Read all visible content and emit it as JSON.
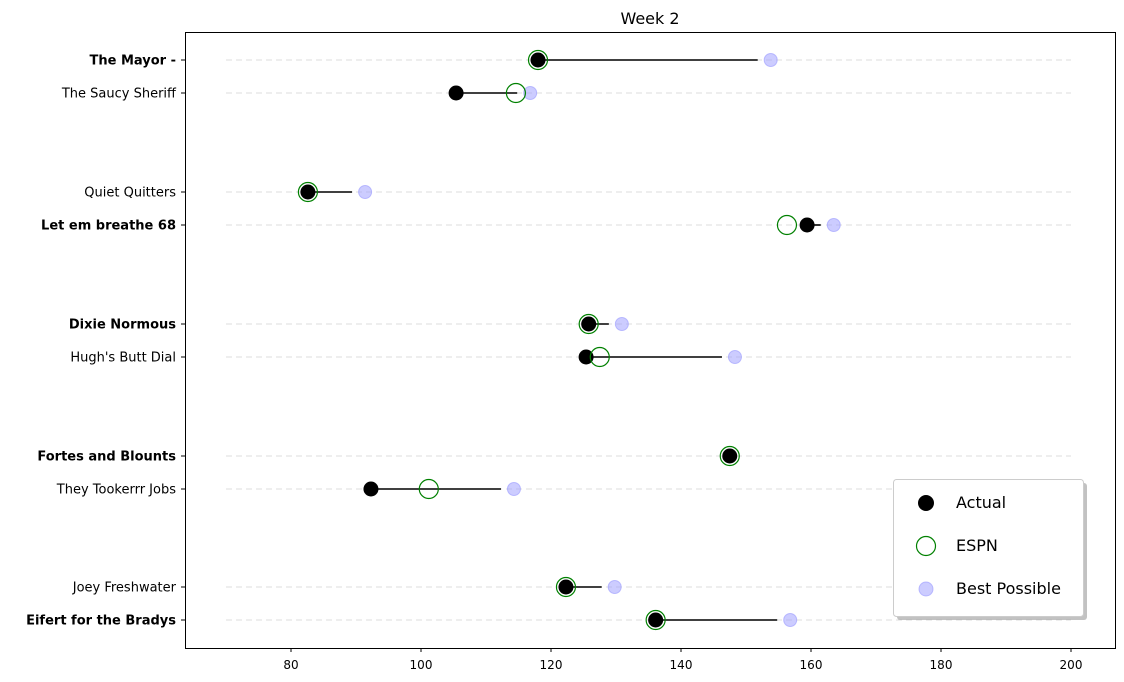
{
  "chart_data": {
    "type": "scatter",
    "title": "Week 2",
    "xlim": [
      70,
      200
    ],
    "xticks": [
      80,
      100,
      120,
      140,
      160,
      180,
      200
    ],
    "grid": "horizontal dashed per team",
    "legend_position": "lower-right",
    "legend": [
      "Actual",
      "ESPN",
      "Best Possible"
    ],
    "colors": {
      "actual": "#000000",
      "espn": "#008000",
      "best": "#9999ff",
      "line": "#000000"
    },
    "teams": [
      {
        "name": "The Mayor -",
        "bold": true,
        "actual": 118.0,
        "espn": 118.0,
        "best": 153.8
      },
      {
        "name": "The Saucy Sheriff",
        "bold": false,
        "actual": 105.4,
        "espn": 114.6,
        "best": 116.8
      },
      {
        "name": "Quiet Quitters",
        "bold": false,
        "actual": 82.6,
        "espn": 82.6,
        "best": 91.4
      },
      {
        "name": "Let em breathe 68",
        "bold": true,
        "actual": 159.4,
        "espn": 156.3,
        "best": 163.5
      },
      {
        "name": "Dixie Normous",
        "bold": true,
        "actual": 125.8,
        "espn": 125.8,
        "best": 130.9
      },
      {
        "name": "Hugh's  Butt Dial",
        "bold": false,
        "actual": 125.4,
        "espn": 127.5,
        "best": 148.3
      },
      {
        "name": "Fortes and Blounts",
        "bold": true,
        "actual": 147.5,
        "espn": 147.5,
        "best": 147.5
      },
      {
        "name": "They Tookerrr Jobs",
        "bold": false,
        "actual": 92.3,
        "espn": 101.2,
        "best": 114.3
      },
      {
        "name": "Joey Freshwater",
        "bold": false,
        "actual": 122.3,
        "espn": 122.3,
        "best": 129.8
      },
      {
        "name": "Eifert  for the Bradys",
        "bold": true,
        "actual": 136.1,
        "espn": 136.1,
        "best": 156.8
      }
    ]
  }
}
